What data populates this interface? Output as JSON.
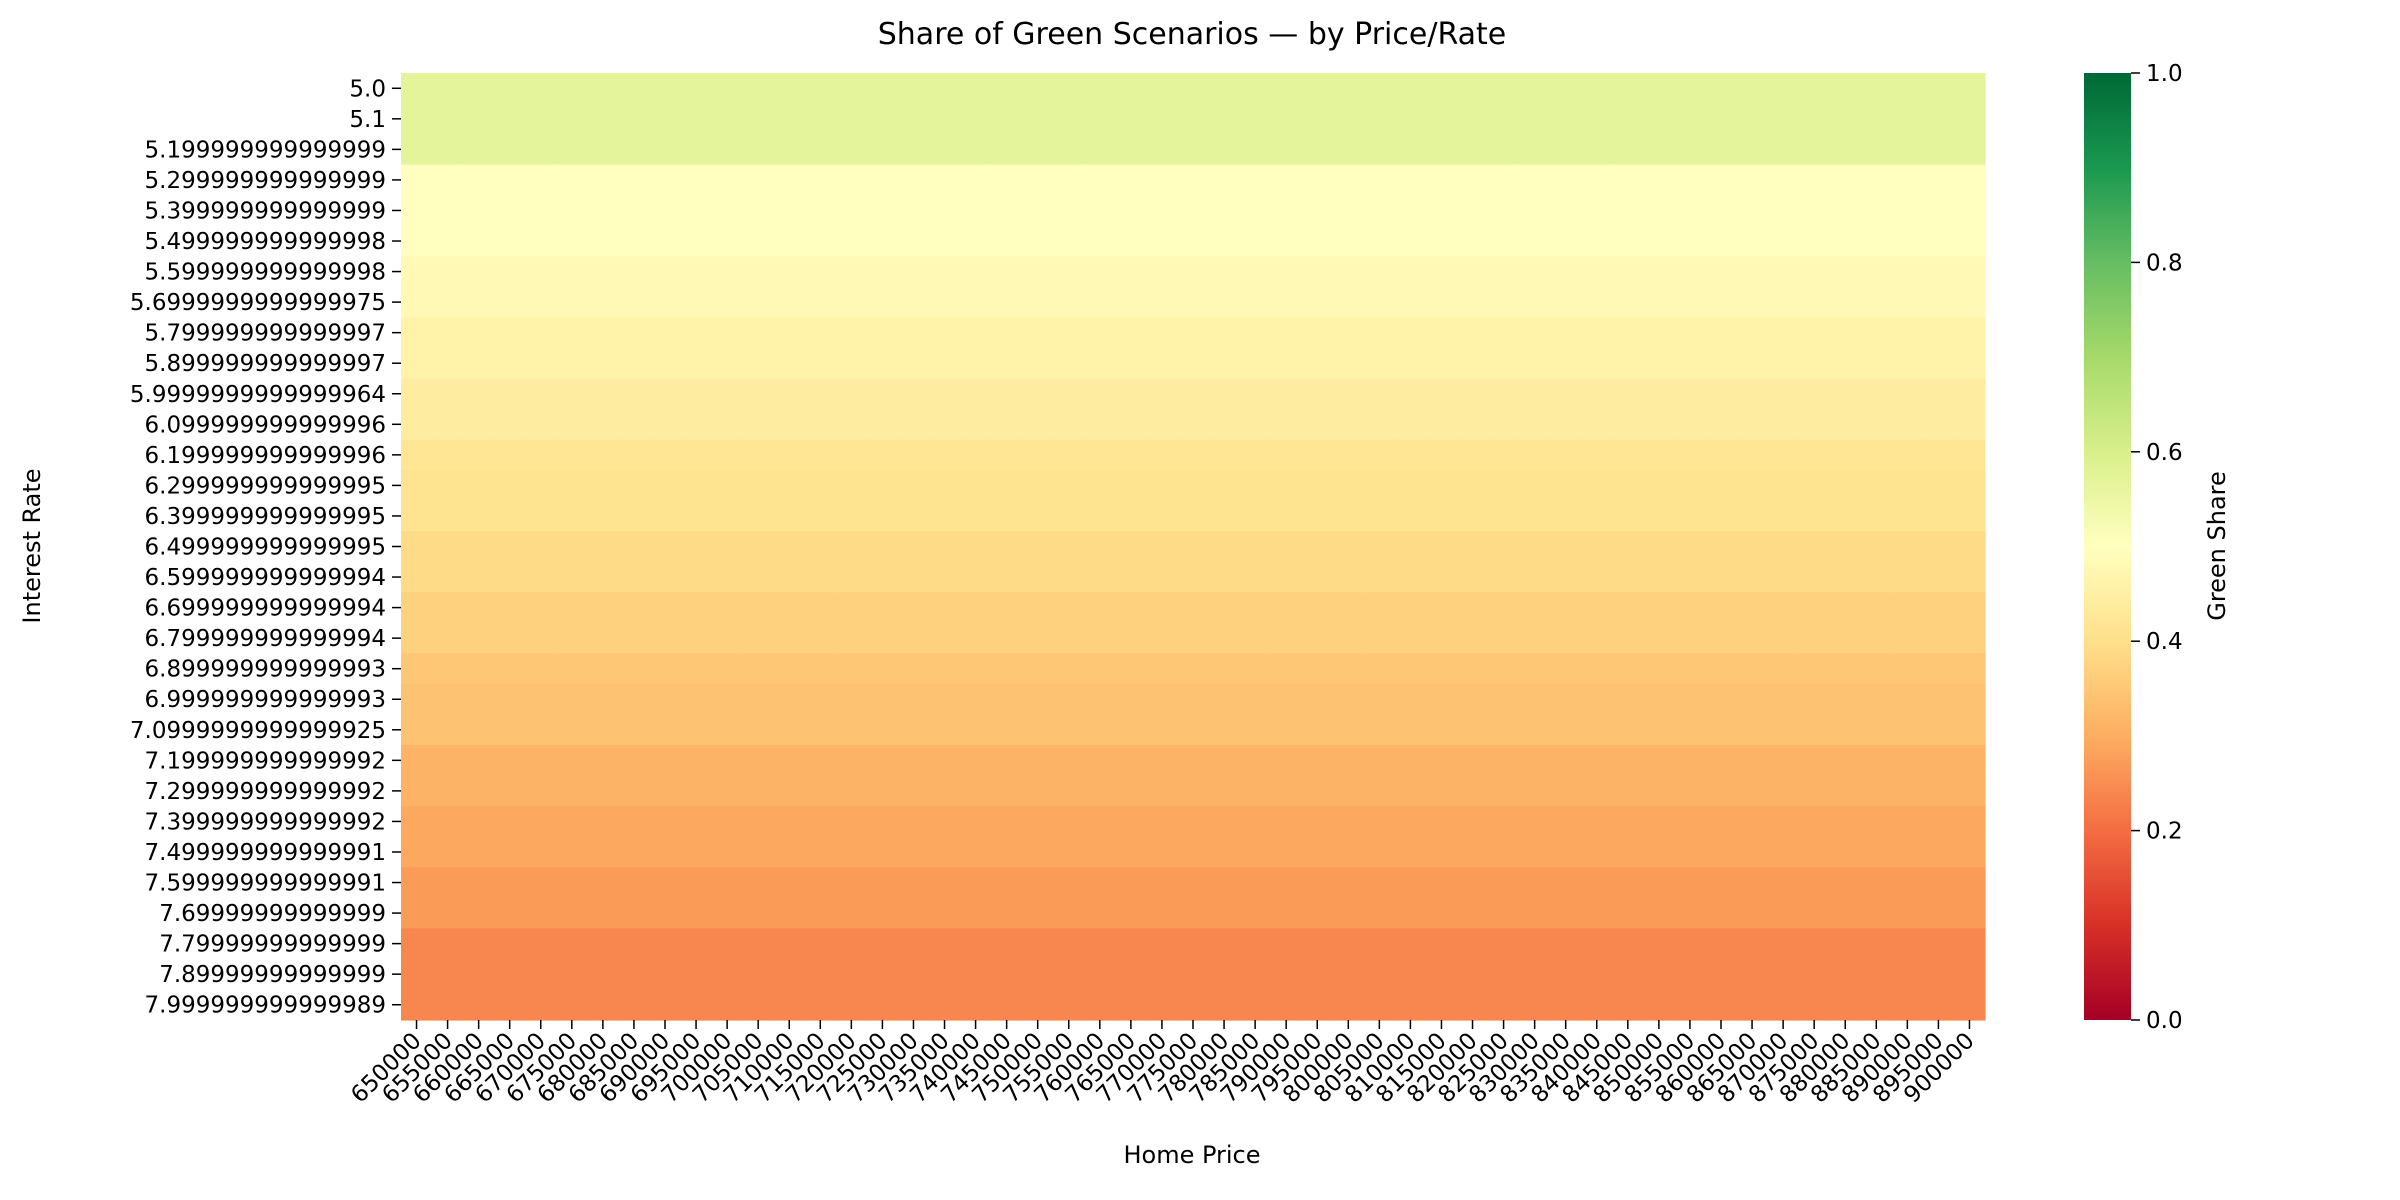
{
  "chart_data": {
    "type": "heatmap",
    "title": "Share of Green Scenarios — by Price/Rate",
    "xlabel": "Home Price",
    "ylabel": "Interest Rate",
    "colorbar_label": "Green Share",
    "colormap": "RdYlGn",
    "vmin": 0.0,
    "vmax": 1.0,
    "colorbar_ticks": [
      "0.0",
      "0.2",
      "0.4",
      "0.6",
      "0.8",
      "1.0"
    ],
    "x": [
      "650000",
      "655000",
      "660000",
      "665000",
      "670000",
      "675000",
      "680000",
      "685000",
      "690000",
      "695000",
      "700000",
      "705000",
      "710000",
      "715000",
      "720000",
      "725000",
      "730000",
      "735000",
      "740000",
      "745000",
      "750000",
      "755000",
      "760000",
      "765000",
      "770000",
      "775000",
      "780000",
      "785000",
      "790000",
      "795000",
      "800000",
      "805000",
      "810000",
      "815000",
      "820000",
      "825000",
      "830000",
      "835000",
      "840000",
      "845000",
      "850000",
      "855000",
      "860000",
      "865000",
      "870000",
      "875000",
      "880000",
      "885000",
      "890000",
      "895000",
      "900000"
    ],
    "y": [
      "5.0",
      "5.1",
      "5.199999999999999",
      "5.299999999999999",
      "5.399999999999999",
      "5.499999999999998",
      "5.599999999999998",
      "5.6999999999999975",
      "5.799999999999997",
      "5.899999999999997",
      "5.9999999999999964",
      "6.099999999999996",
      "6.199999999999996",
      "6.299999999999995",
      "6.399999999999995",
      "6.499999999999995",
      "6.599999999999994",
      "6.699999999999994",
      "6.799999999999994",
      "6.899999999999993",
      "6.999999999999993",
      "7.0999999999999925",
      "7.199999999999992",
      "7.299999999999992",
      "7.399999999999992",
      "7.499999999999991",
      "7.599999999999991",
      "7.69999999999999",
      "7.79999999999999",
      "7.89999999999999",
      "7.999999999999989"
    ],
    "row_values": [
      0.57,
      0.57,
      0.57,
      0.5,
      0.5,
      0.5,
      0.48,
      0.48,
      0.46,
      0.46,
      0.44,
      0.44,
      0.42,
      0.41,
      0.41,
      0.39,
      0.39,
      0.37,
      0.37,
      0.35,
      0.34,
      0.34,
      0.31,
      0.31,
      0.29,
      0.29,
      0.27,
      0.27,
      0.24,
      0.24,
      0.24
    ],
    "note_constant_across_x": true
  }
}
